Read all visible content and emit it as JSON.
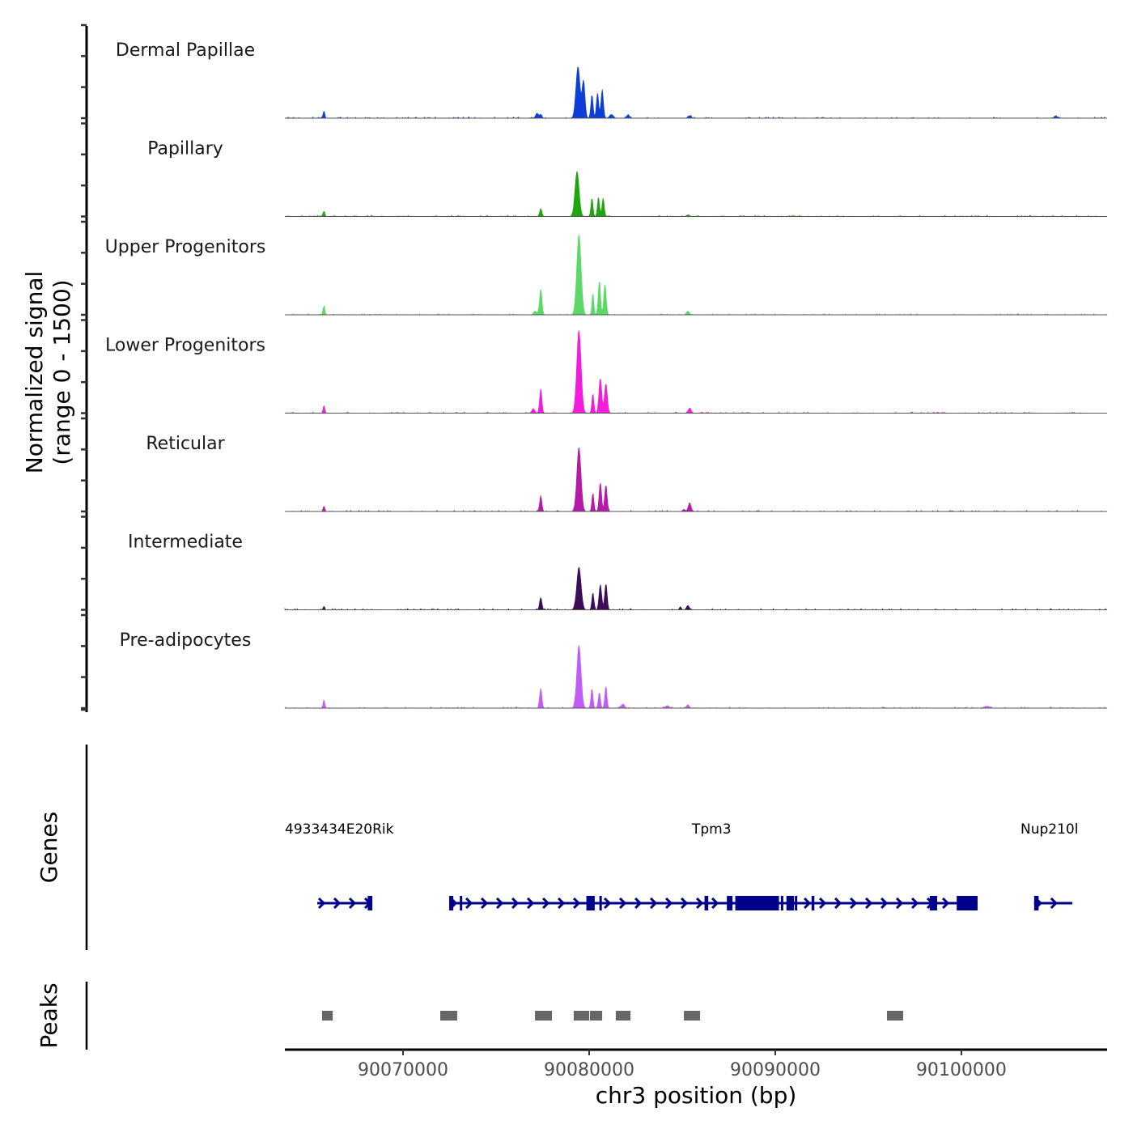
{
  "chart_data": {
    "type": "area",
    "title": "",
    "ylabel_line1": "Normalized signal",
    "ylabel_line2": "(range 0 - 1500)",
    "ylim": [
      0,
      1500
    ],
    "xlabel": "chr3 position (bp)",
    "xlim": [
      90063650,
      90107830
    ],
    "x_ticks": [
      90070000,
      90080000,
      90090000,
      90100000
    ],
    "x_tick_labels": [
      "90070000",
      "90080000",
      "90090000",
      "90100000"
    ],
    "grid": false,
    "tracks": [
      {
        "name": "Dermal Papillae",
        "color": "#0d3fd6",
        "peaks": [
          [
            90065750,
            120,
            90
          ],
          [
            90077200,
            80,
            150
          ],
          [
            90077400,
            60,
            120
          ],
          [
            90079400,
            835,
            220
          ],
          [
            90079700,
            600,
            150
          ],
          [
            90080150,
            380,
            120
          ],
          [
            90080450,
            410,
            120
          ],
          [
            90080700,
            450,
            130
          ],
          [
            90081200,
            60,
            200
          ],
          [
            90082100,
            60,
            120
          ],
          [
            90085400,
            40,
            160
          ],
          [
            90105100,
            25,
            250
          ]
        ]
      },
      {
        "name": "Papillary",
        "color": "#1fa60f",
        "peaks": [
          [
            90065750,
            90,
            90
          ],
          [
            90077400,
            130,
            120
          ],
          [
            90079350,
            730,
            220
          ],
          [
            90080150,
            300,
            110
          ],
          [
            90080500,
            320,
            110
          ],
          [
            90080750,
            300,
            120
          ],
          [
            90085300,
            25,
            150
          ]
        ]
      },
      {
        "name": "Upper Progenitors",
        "color": "#5cd868",
        "peaks": [
          [
            90065750,
            140,
            90
          ],
          [
            90077400,
            420,
            130
          ],
          [
            90077100,
            60,
            160
          ],
          [
            90079450,
            1300,
            230
          ],
          [
            90080200,
            350,
            100
          ],
          [
            90080550,
            560,
            120
          ],
          [
            90080850,
            500,
            130
          ],
          [
            90085300,
            60,
            150
          ]
        ]
      },
      {
        "name": "Lower Progenitors",
        "color": "#f21ddb",
        "peaks": [
          [
            90065750,
            130,
            90
          ],
          [
            90077400,
            400,
            120
          ],
          [
            90077000,
            70,
            160
          ],
          [
            90079450,
            1340,
            230
          ],
          [
            90080200,
            320,
            110
          ],
          [
            90080600,
            560,
            150
          ],
          [
            90080900,
            480,
            150
          ],
          [
            90085400,
            80,
            160
          ]
        ]
      },
      {
        "name": "Reticular",
        "color": "#b41ba6",
        "peaks": [
          [
            90065750,
            90,
            90
          ],
          [
            90077400,
            250,
            120
          ],
          [
            90079450,
            1040,
            220
          ],
          [
            90080200,
            300,
            110
          ],
          [
            90080600,
            470,
            130
          ],
          [
            90080900,
            430,
            130
          ],
          [
            90085400,
            140,
            150
          ],
          [
            90085100,
            30,
            150
          ]
        ]
      },
      {
        "name": "Intermediate",
        "color": "#3b0d57",
        "peaks": [
          [
            90065750,
            60,
            80
          ],
          [
            90077400,
            200,
            120
          ],
          [
            90079450,
            690,
            230
          ],
          [
            90080200,
            280,
            110
          ],
          [
            90080600,
            400,
            140
          ],
          [
            90080900,
            420,
            130
          ],
          [
            90085300,
            70,
            140
          ],
          [
            90084900,
            50,
            100
          ]
        ]
      },
      {
        "name": "Pre-adipocytes",
        "color": "#c15cf7",
        "peaks": [
          [
            90065750,
            130,
            90
          ],
          [
            90077400,
            320,
            120
          ],
          [
            90079450,
            1020,
            220
          ],
          [
            90080150,
            320,
            110
          ],
          [
            90080550,
            260,
            110
          ],
          [
            90080900,
            360,
            110
          ],
          [
            90081800,
            60,
            200
          ],
          [
            90084200,
            40,
            200
          ],
          [
            90085300,
            50,
            150
          ],
          [
            90101400,
            30,
            250
          ]
        ]
      }
    ],
    "genes": [
      {
        "name": "4933434E20Rik",
        "start": 90065390,
        "end": 90068350,
        "strand": "+",
        "exons": [
          [
            90068100,
            90068350
          ]
        ]
      },
      {
        "name": "Tpm3",
        "start": 90072480,
        "end": 90100870,
        "strand": "+",
        "exons": [
          [
            90072480,
            90072700
          ],
          [
            90073050,
            90073150
          ],
          [
            90079850,
            90080300
          ],
          [
            90080550,
            90080650
          ],
          [
            90086200,
            90086400
          ],
          [
            90087400,
            90087700
          ],
          [
            90087850,
            90090200
          ],
          [
            90090300,
            90090400
          ],
          [
            90090600,
            90091000
          ],
          [
            90091050,
            90091100
          ],
          [
            90091950,
            90092100
          ],
          [
            90098300,
            90098700
          ],
          [
            90099750,
            90100870
          ]
        ]
      },
      {
        "name": "Nup210l",
        "start": 90103910,
        "end": 90105960,
        "strand": "+",
        "exons": [
          [
            90103910,
            90104150
          ]
        ]
      }
    ],
    "peaks_track": [
      [
        90065650,
        90066220
      ],
      [
        90072000,
        90072910
      ],
      [
        90077090,
        90078000
      ],
      [
        90079170,
        90080000
      ],
      [
        90080040,
        90080700
      ],
      [
        90081430,
        90082220
      ],
      [
        90085090,
        90085960
      ],
      [
        90096000,
        90096870
      ]
    ],
    "panel_labels": {
      "genes": "Genes",
      "peaks": "Peaks"
    },
    "gene_color": "#00008b",
    "peak_color": "#666666"
  }
}
